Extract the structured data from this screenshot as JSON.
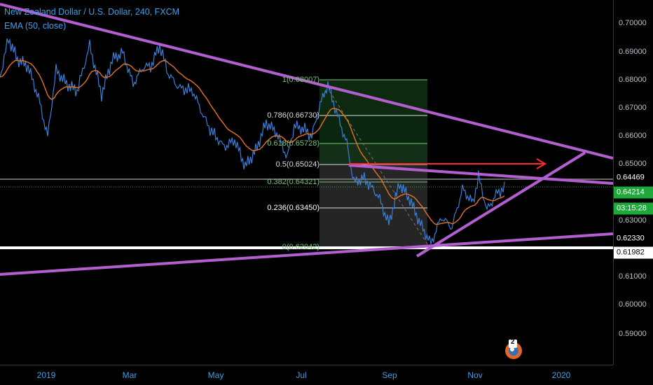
{
  "chart": {
    "title": "New Zealand Dollar / U.S. Dollar, 240, FXCM",
    "indicator": "EMA (50, close)",
    "colors": {
      "candles": "#3b7fd8",
      "ema": "#e8721f",
      "trendline": "#b45fd0",
      "fib_green": "#76c47a",
      "arrow": "#ff2a2a",
      "support": "#ffffff"
    }
  },
  "price_axis": {
    "ticks": [
      "0.70000",
      "0.69000",
      "0.68000",
      "0.67000",
      "0.66000",
      "0.65000",
      "0.63000",
      "0.61000",
      "0.60000",
      "0.59000"
    ],
    "badges": {
      "last_high": "0.64469",
      "current_price": "0.64214",
      "countdown": "03:15:28",
      "level_a": "0.62330",
      "level_b": "0.61982"
    }
  },
  "time_axis": {
    "labels": [
      "2019",
      "Mar",
      "May",
      "Jul",
      "Sep",
      "Nov",
      "2020"
    ]
  },
  "fibonacci": {
    "levels": [
      {
        "label": "1(0.68007)"
      },
      {
        "label": "0.786(0.66730)"
      },
      {
        "label": "0.618(0.65728)"
      },
      {
        "label": "0.5(0.65024)"
      },
      {
        "label": "0.382(0.64321)"
      },
      {
        "label": "0.236(0.63450)"
      },
      {
        "label": "0(0.62042)"
      }
    ]
  },
  "badge": {
    "count": "2"
  }
}
